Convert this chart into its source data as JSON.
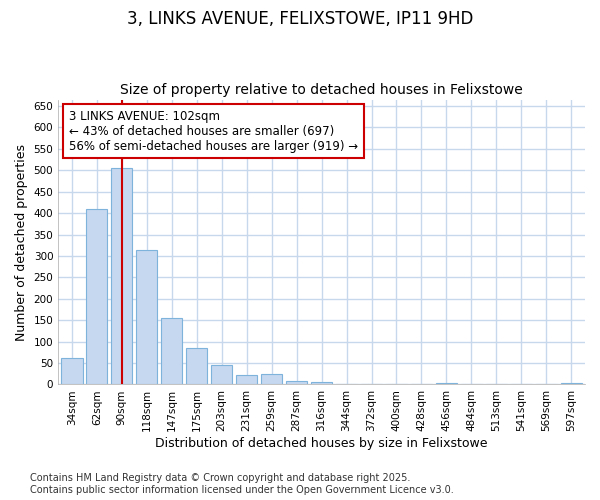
{
  "title_line1": "3, LINKS AVENUE, FELIXSTOWE, IP11 9HD",
  "title_line2": "Size of property relative to detached houses in Felixstowe",
  "xlabel": "Distribution of detached houses by size in Felixstowe",
  "ylabel": "Number of detached properties",
  "categories": [
    "34sqm",
    "62sqm",
    "90sqm",
    "118sqm",
    "147sqm",
    "175sqm",
    "203sqm",
    "231sqm",
    "259sqm",
    "287sqm",
    "316sqm",
    "344sqm",
    "372sqm",
    "400sqm",
    "428sqm",
    "456sqm",
    "484sqm",
    "513sqm",
    "541sqm",
    "569sqm",
    "597sqm"
  ],
  "values": [
    62,
    410,
    505,
    313,
    155,
    84,
    45,
    23,
    24,
    9,
    5,
    0,
    0,
    0,
    0,
    4,
    0,
    0,
    0,
    0,
    3
  ],
  "bar_color": "#c5d8f0",
  "bar_edge_color": "#7eb3dc",
  "vline_x": 2.0,
  "vline_color": "#cc0000",
  "annotation_text": "3 LINKS AVENUE: 102sqm\n← 43% of detached houses are smaller (697)\n56% of semi-detached houses are larger (919) →",
  "annotation_box_color": "#ffffff",
  "annotation_box_edge": "#cc0000",
  "ylim": [
    0,
    665
  ],
  "yticks": [
    0,
    50,
    100,
    150,
    200,
    250,
    300,
    350,
    400,
    450,
    500,
    550,
    600,
    650
  ],
  "footer_text": "Contains HM Land Registry data © Crown copyright and database right 2025.\nContains public sector information licensed under the Open Government Licence v3.0.",
  "bg_color": "#ffffff",
  "plot_bg_color": "#ffffff",
  "grid_color": "#c8d8ec",
  "title_fontsize": 12,
  "subtitle_fontsize": 10,
  "axis_label_fontsize": 9,
  "tick_fontsize": 7.5,
  "annotation_fontsize": 8.5,
  "footer_fontsize": 7
}
